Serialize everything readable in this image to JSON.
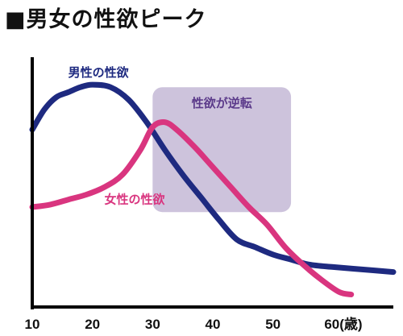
{
  "chart_data": {
    "type": "line",
    "title": "■男女の性欲ピーク",
    "x_unit": "(歳)",
    "xlim": [
      10,
      70
    ],
    "ylim": [
      0,
      100
    ],
    "x_ticks": [
      10,
      20,
      30,
      40,
      50,
      60
    ],
    "grid": false,
    "y_values_note": "",
    "series": [
      {
        "name": "男性の性欲",
        "color": "#1e2a80",
        "x": [
          10,
          12,
          14,
          16,
          18,
          20,
          23,
          26,
          29,
          32,
          35,
          38,
          41,
          44,
          47,
          50,
          53,
          56,
          60,
          65,
          70
        ],
        "y": [
          71,
          79,
          84,
          86,
          88,
          89,
          88,
          83,
          74,
          63,
          53,
          44,
          35,
          27,
          24,
          21,
          19,
          17,
          16,
          15,
          14
        ]
      },
      {
        "name": "女性の性欲",
        "color": "#d9357f",
        "x": [
          10,
          13,
          16,
          19,
          22,
          25,
          28,
          30,
          32,
          34,
          37,
          40,
          43,
          46,
          49,
          52,
          55,
          58,
          61,
          63
        ],
        "y": [
          40,
          41,
          43,
          45,
          48,
          53,
          63,
          72,
          74,
          71,
          64,
          56,
          48,
          40,
          33,
          24,
          17,
          11,
          6,
          5
        ]
      }
    ],
    "annotations": [
      {
        "text": "性欲が逆転",
        "x_range": [
          30,
          53
        ],
        "y_range": [
          38,
          88
        ],
        "color": "#cdc3dc",
        "text_color": "#5b3a8a"
      }
    ]
  }
}
